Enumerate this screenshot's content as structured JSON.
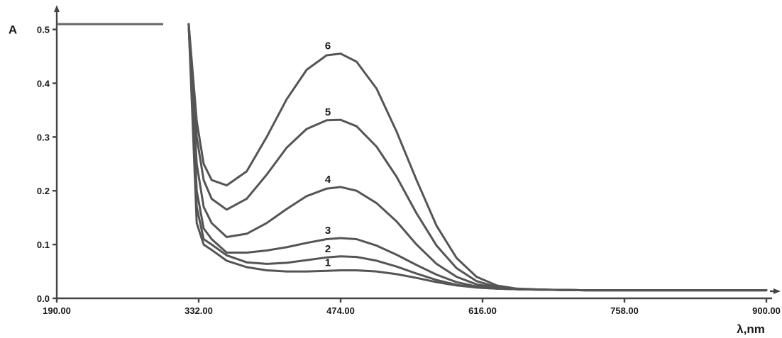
{
  "chart_data": {
    "type": "line",
    "title": "",
    "ylabel": "A",
    "xlabel": "λ,nm",
    "xlim": [
      190,
      900
    ],
    "ylim": [
      0,
      0.51
    ],
    "x_ticks": [
      "190.00",
      "332.00",
      "474.00",
      "616.00",
      "758.00",
      "900.00"
    ],
    "y_ticks": [
      "0.0",
      "0.1",
      "0.2",
      "0.3",
      "0.4",
      "0.5"
    ],
    "x": [
      322,
      330,
      337,
      345,
      360,
      380,
      400,
      420,
      440,
      460,
      474,
      490,
      510,
      530,
      550,
      570,
      590,
      610,
      630,
      650,
      680,
      720,
      800,
      900
    ],
    "series": [
      {
        "name": "1",
        "label_x": 474,
        "values": [
          0.51,
          0.14,
          0.1,
          0.09,
          0.07,
          0.058,
          0.052,
          0.05,
          0.05,
          0.051,
          0.052,
          0.052,
          0.05,
          0.045,
          0.038,
          0.03,
          0.024,
          0.02,
          0.018,
          0.017,
          0.016,
          0.015,
          0.015,
          0.015
        ]
      },
      {
        "name": "2",
        "label_x": 474,
        "values": [
          0.51,
          0.17,
          0.11,
          0.1,
          0.08,
          0.067,
          0.064,
          0.066,
          0.071,
          0.076,
          0.078,
          0.077,
          0.07,
          0.059,
          0.046,
          0.034,
          0.025,
          0.02,
          0.018,
          0.017,
          0.016,
          0.015,
          0.015,
          0.015
        ]
      },
      {
        "name": "3",
        "label_x": 474,
        "values": [
          0.51,
          0.2,
          0.13,
          0.11,
          0.085,
          0.085,
          0.089,
          0.095,
          0.103,
          0.11,
          0.112,
          0.11,
          0.098,
          0.081,
          0.062,
          0.044,
          0.03,
          0.022,
          0.018,
          0.017,
          0.016,
          0.015,
          0.015,
          0.015
        ]
      },
      {
        "name": "4",
        "label_x": 474,
        "values": [
          0.51,
          0.25,
          0.17,
          0.14,
          0.114,
          0.12,
          0.14,
          0.166,
          0.19,
          0.204,
          0.207,
          0.2,
          0.177,
          0.143,
          0.1,
          0.064,
          0.04,
          0.026,
          0.02,
          0.017,
          0.016,
          0.015,
          0.015,
          0.015
        ]
      },
      {
        "name": "5",
        "label_x": 474,
        "values": [
          0.51,
          0.3,
          0.22,
          0.185,
          0.165,
          0.185,
          0.23,
          0.28,
          0.315,
          0.331,
          0.332,
          0.32,
          0.282,
          0.226,
          0.158,
          0.098,
          0.056,
          0.032,
          0.021,
          0.017,
          0.016,
          0.015,
          0.015,
          0.015
        ]
      },
      {
        "name": "6",
        "label_x": 474,
        "values": [
          0.51,
          0.33,
          0.25,
          0.22,
          0.21,
          0.236,
          0.3,
          0.37,
          0.425,
          0.452,
          0.455,
          0.44,
          0.39,
          0.31,
          0.22,
          0.135,
          0.075,
          0.04,
          0.024,
          0.018,
          0.016,
          0.015,
          0.015,
          0.015
        ]
      }
    ],
    "initial_flat": {
      "x": [
        190,
        322
      ],
      "y": 0.51
    },
    "grid": false,
    "legend": "none"
  }
}
